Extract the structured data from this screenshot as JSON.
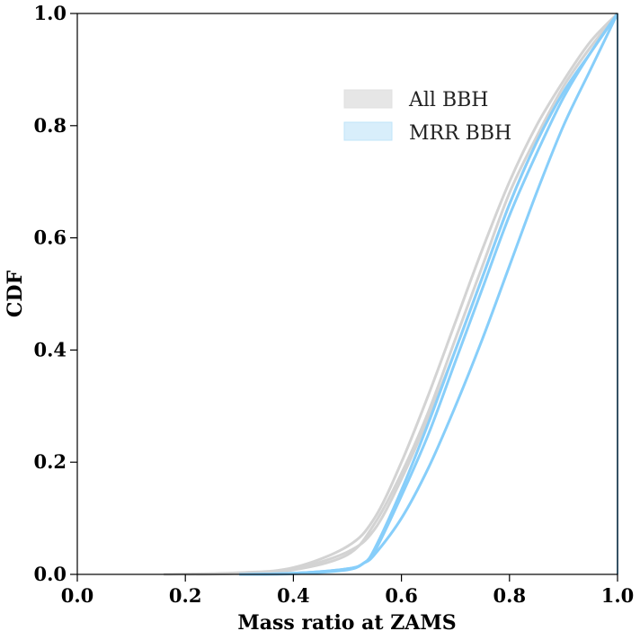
{
  "chart_data": {
    "type": "line",
    "xlabel": "Mass ratio at ZAMS",
    "ylabel": "CDF",
    "xlim": [
      0.0,
      1.0
    ],
    "ylim": [
      0.0,
      1.0
    ],
    "xticks": [
      "0.0",
      "0.2",
      "0.4",
      "0.6",
      "0.8",
      "1.0"
    ],
    "yticks": [
      "0.0",
      "0.2",
      "0.4",
      "0.6",
      "0.8",
      "1.0"
    ],
    "grid": false,
    "legend_position": "upper-right",
    "legend": [
      {
        "label": "All BBH",
        "color": "#d3d3d3"
      },
      {
        "label": "MRR BBH",
        "color": "#87cefa"
      }
    ],
    "series": [
      {
        "group": "All BBH",
        "color": "#d3d3d3",
        "x": [
          0.16,
          0.3,
          0.4,
          0.5,
          0.55,
          0.6,
          0.65,
          0.7,
          0.75,
          0.8,
          0.85,
          0.9,
          0.95,
          1.0
        ],
        "y": [
          0.0,
          0.003,
          0.012,
          0.05,
          0.1,
          0.2,
          0.32,
          0.45,
          0.58,
          0.7,
          0.8,
          0.88,
          0.95,
          1.0
        ]
      },
      {
        "group": "All BBH",
        "color": "#d3d3d3",
        "x": [
          0.2,
          0.3,
          0.4,
          0.5,
          0.55,
          0.6,
          0.65,
          0.7,
          0.75,
          0.8,
          0.85,
          0.9,
          0.95,
          1.0
        ],
        "y": [
          0.0,
          0.002,
          0.008,
          0.035,
          0.09,
          0.18,
          0.29,
          0.42,
          0.55,
          0.68,
          0.78,
          0.87,
          0.94,
          1.0
        ]
      },
      {
        "group": "All BBH",
        "color": "#d3d3d3",
        "x": [
          0.22,
          0.3,
          0.4,
          0.5,
          0.55,
          0.6,
          0.65,
          0.7,
          0.75,
          0.8,
          0.85,
          0.9,
          0.95,
          1.0
        ],
        "y": [
          0.0,
          0.002,
          0.01,
          0.04,
          0.08,
          0.17,
          0.28,
          0.4,
          0.53,
          0.66,
          0.77,
          0.86,
          0.93,
          1.0
        ]
      },
      {
        "group": "MRR BBH",
        "color": "#87cefa",
        "x": [
          0.3,
          0.4,
          0.5,
          0.53,
          0.55,
          0.6,
          0.65,
          0.7,
          0.75,
          0.8,
          0.85,
          0.9,
          0.95,
          1.0
        ],
        "y": [
          0.0,
          0.002,
          0.01,
          0.02,
          0.04,
          0.14,
          0.25,
          0.38,
          0.51,
          0.64,
          0.75,
          0.85,
          0.93,
          1.0
        ]
      },
      {
        "group": "MRR BBH",
        "color": "#87cefa",
        "x": [
          0.3,
          0.4,
          0.5,
          0.53,
          0.55,
          0.6,
          0.65,
          0.7,
          0.75,
          0.8,
          0.85,
          0.9,
          0.95,
          1.0
        ],
        "y": [
          0.0,
          0.002,
          0.01,
          0.02,
          0.045,
          0.15,
          0.27,
          0.4,
          0.53,
          0.66,
          0.77,
          0.86,
          0.93,
          1.0
        ]
      },
      {
        "group": "MRR BBH",
        "color": "#87cefa",
        "x": [
          0.3,
          0.4,
          0.5,
          0.53,
          0.55,
          0.6,
          0.65,
          0.7,
          0.75,
          0.8,
          0.85,
          0.9,
          0.95,
          1.0
        ],
        "y": [
          0.0,
          0.001,
          0.008,
          0.02,
          0.035,
          0.1,
          0.19,
          0.3,
          0.42,
          0.55,
          0.68,
          0.8,
          0.9,
          1.0
        ]
      }
    ]
  }
}
